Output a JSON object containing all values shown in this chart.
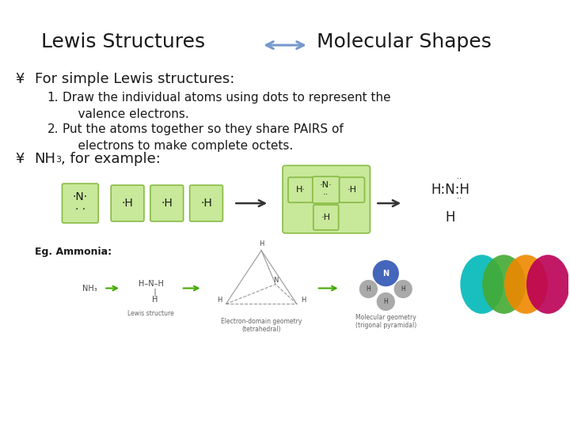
{
  "title_left": "Lewis Structures",
  "title_right": "Molecular Shapes",
  "arrow_color": "#7799cc",
  "bullet_symbol": "¥",
  "bullet1_text": "For simple Lewis structures:",
  "bullet2_prefix": "NH",
  "bullet2_sub": "3",
  "bullet2_suffix": ", for example:",
  "eg_label": "Eg. Ammonia:",
  "bg_color": "#ffffff",
  "text_color": "#1a1a1a",
  "font_family": "DejaVu Sans",
  "title_fontsize": 18,
  "body_fontsize": 11,
  "bullet_fontsize": 13,
  "small_fontsize": 9,
  "green_face": "#c8e89a",
  "green_edge": "#88bb44",
  "overlap_colors": [
    "#00b8b8",
    "#44aa33",
    "#ee8800",
    "#bb0055"
  ]
}
